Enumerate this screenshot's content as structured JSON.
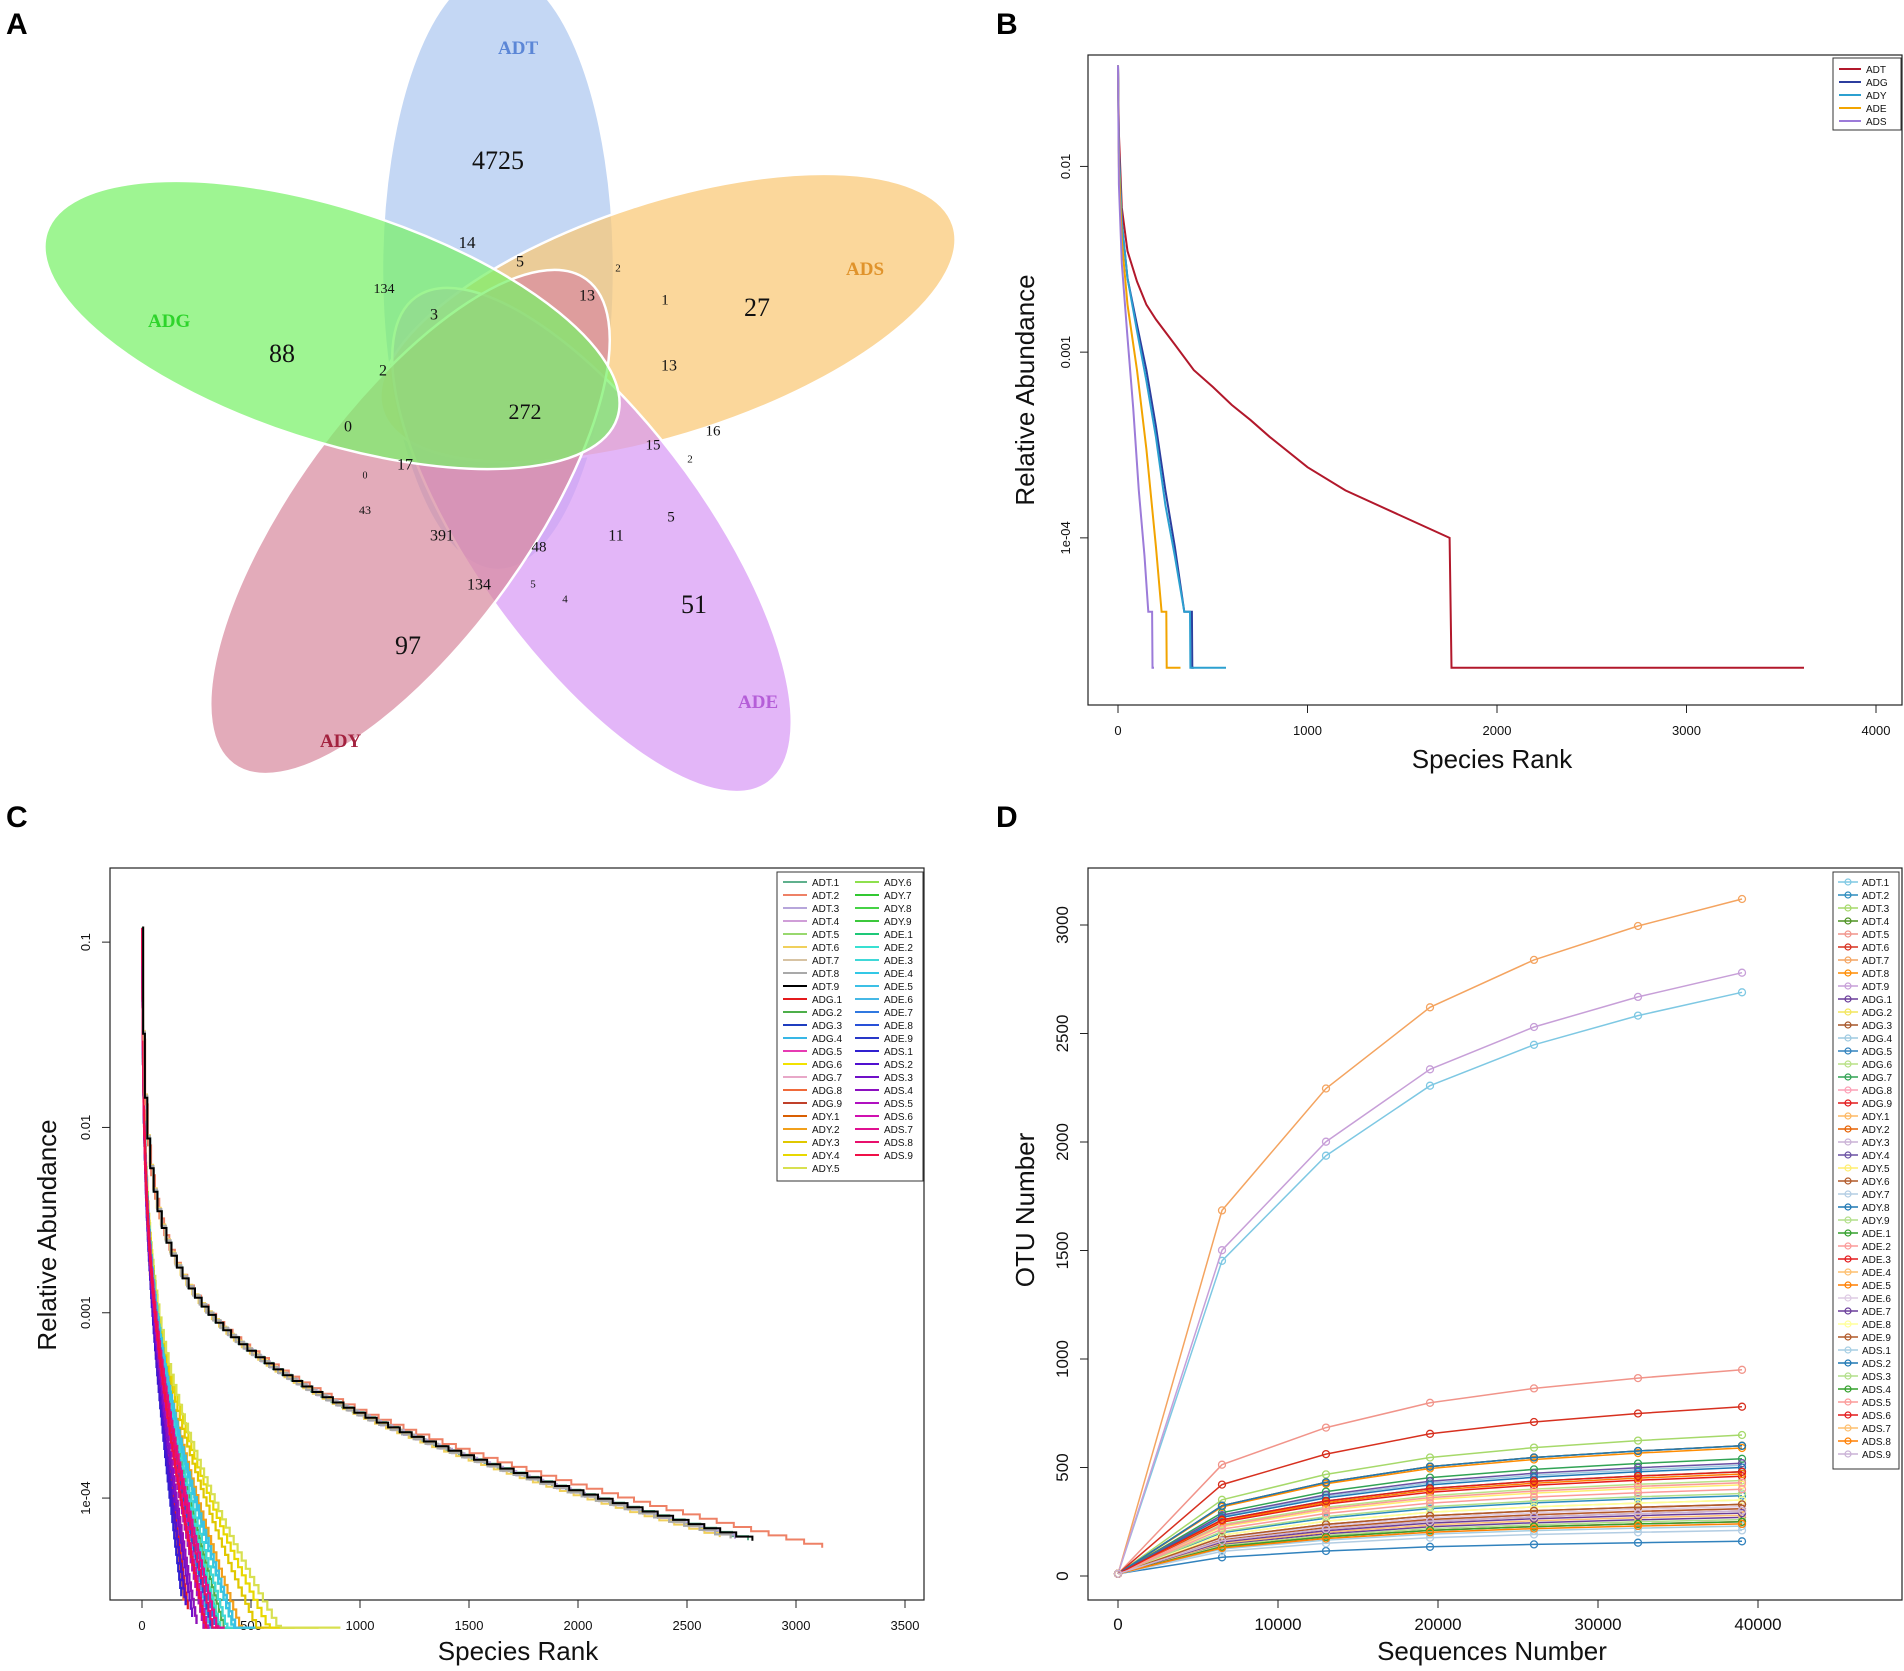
{
  "panels": {
    "A": "A",
    "B": "B",
    "C": "C",
    "D": "D"
  },
  "venn": {
    "sets": [
      {
        "name": "ADT",
        "color": "#6f9be8",
        "fill": "#adc7f0"
      },
      {
        "name": "ADS",
        "color": "#f0a53c",
        "fill": "#f9c874"
      },
      {
        "name": "ADE",
        "color": "#c57fe6",
        "fill": "#d89af5"
      },
      {
        "name": "ADY",
        "color": "#b2284c",
        "fill": "#d88aa0"
      },
      {
        "name": "ADG",
        "color": "#3fe03a",
        "fill": "#78f168"
      }
    ],
    "counts": [
      "4725",
      "27",
      "51",
      "97",
      "88",
      "14",
      "134",
      "3",
      "2",
      "0",
      "5",
      "2",
      "1",
      "13",
      "13",
      "16",
      "15",
      "2",
      "5",
      "11",
      "48",
      "391",
      "43",
      "17",
      "0",
      "134",
      "5",
      "4",
      "272"
    ]
  },
  "chart_data": [
    {
      "panel": "B",
      "type": "line",
      "title": "",
      "xlabel": "Species Rank",
      "ylabel": "Relative Abundance",
      "xlim": [
        0,
        4000
      ],
      "ylim_log10": [
        -4.9,
        -1.4
      ],
      "x_ticks": [
        "0",
        "1000",
        "2000",
        "3000",
        "4000"
      ],
      "y_ticks": [
        {
          "label": "0.01",
          "value": 0.01
        },
        {
          "label": "0.001",
          "value": 0.001
        },
        {
          "label": "1e-04",
          "value": 0.0001
        }
      ],
      "legend": [
        {
          "label": "ADT",
          "color": "#b2182b"
        },
        {
          "label": "ADG",
          "color": "#2c3e9e"
        },
        {
          "label": "ADY",
          "color": "#2ca0d0"
        },
        {
          "label": "ADE",
          "color": "#f2a400"
        },
        {
          "label": "ADS",
          "color": "#9c7bd9"
        }
      ],
      "series": [
        {
          "name": "ADT",
          "color": "#b2182b",
          "points": [
            [
              0,
              0.035
            ],
            [
              5,
              0.015
            ],
            [
              20,
              0.006
            ],
            [
              50,
              0.0035
            ],
            [
              100,
              0.0024
            ],
            [
              150,
              0.0018
            ],
            [
              200,
              0.0015
            ],
            [
              300,
              0.0011
            ],
            [
              400,
              0.0008
            ],
            [
              500,
              0.00065
            ],
            [
              600,
              0.00052
            ],
            [
              700,
              0.00043
            ],
            [
              800,
              0.00035
            ],
            [
              1000,
              0.00024
            ],
            [
              1200,
              0.00018
            ],
            [
              1750,
              0.0001
            ],
            [
              1760,
              2e-05
            ],
            [
              3620,
              2e-05
            ]
          ]
        },
        {
          "name": "ADG",
          "color": "#2c3e9e",
          "points": [
            [
              0,
              0.035
            ],
            [
              5,
              0.012
            ],
            [
              20,
              0.005
            ],
            [
              50,
              0.0025
            ],
            [
              100,
              0.0014
            ],
            [
              150,
              0.0008
            ],
            [
              200,
              0.0004
            ],
            [
              250,
              0.00018
            ],
            [
              300,
              9e-05
            ],
            [
              350,
              4e-05
            ],
            [
              390,
              4e-05
            ],
            [
              392,
              2e-05
            ],
            [
              400,
              2e-05
            ]
          ]
        },
        {
          "name": "ADY",
          "color": "#2ca0d0",
          "points": [
            [
              0,
              0.035
            ],
            [
              5,
              0.012
            ],
            [
              20,
              0.005
            ],
            [
              50,
              0.0025
            ],
            [
              100,
              0.0013
            ],
            [
              150,
              0.0007
            ],
            [
              200,
              0.00035
            ],
            [
              250,
              0.00015
            ],
            [
              300,
              8e-05
            ],
            [
              350,
              4e-05
            ],
            [
              380,
              4e-05
            ],
            [
              382,
              2e-05
            ],
            [
              570,
              2e-05
            ]
          ]
        },
        {
          "name": "ADE",
          "color": "#f2a400",
          "points": [
            [
              0,
              0.035
            ],
            [
              5,
              0.01
            ],
            [
              20,
              0.004
            ],
            [
              50,
              0.0018
            ],
            [
              100,
              0.0008
            ],
            [
              150,
              0.0003
            ],
            [
              200,
              9e-05
            ],
            [
              230,
              4e-05
            ],
            [
              255,
              4e-05
            ],
            [
              257,
              2e-05
            ],
            [
              330,
              2e-05
            ]
          ]
        },
        {
          "name": "ADS",
          "color": "#9c7bd9",
          "points": [
            [
              0,
              0.035
            ],
            [
              5,
              0.008
            ],
            [
              20,
              0.003
            ],
            [
              50,
              0.0012
            ],
            [
              80,
              0.0005
            ],
            [
              110,
              0.00018
            ],
            [
              140,
              8e-05
            ],
            [
              160,
              4e-05
            ],
            [
              180,
              4e-05
            ],
            [
              182,
              2e-05
            ],
            [
              190,
              2e-05
            ]
          ]
        }
      ]
    },
    {
      "panel": "C",
      "type": "line",
      "title": "",
      "xlabel": "Species Rank",
      "ylabel": "Relative Abundance",
      "xlim": [
        0,
        3500
      ],
      "ylim_log10": [
        -4.55,
        -0.6
      ],
      "x_ticks": [
        "0",
        "500",
        "1000",
        "1500",
        "2000",
        "2500",
        "3000",
        "3500"
      ],
      "y_ticks": [
        {
          "label": "0.1",
          "value": 0.1
        },
        {
          "label": "0.01",
          "value": 0.01
        },
        {
          "label": "0.001",
          "value": 0.001
        },
        {
          "label": "1e-04",
          "value": 0.0001
        }
      ],
      "legend_labels": [
        "ADT.1",
        "ADT.2",
        "ADT.3",
        "ADT.4",
        "ADT.5",
        "ADT.6",
        "ADT.7",
        "ADT.8",
        "ADT.9",
        "ADG.1",
        "ADG.2",
        "ADG.3",
        "ADG.4",
        "ADG.5",
        "ADG.6",
        "ADG.7",
        "ADG.8",
        "ADG.9",
        "ADY.1",
        "ADY.2",
        "ADY.3",
        "ADY.4",
        "ADY.5",
        "ADY.6",
        "ADY.7",
        "ADY.8",
        "ADY.9",
        "ADE.1",
        "ADE.2",
        "ADE.3",
        "ADE.4",
        "ADE.5",
        "ADE.6",
        "ADE.7",
        "ADE.8",
        "ADE.9",
        "ADS.1",
        "ADS.2",
        "ADS.3",
        "ADS.4",
        "ADS.5",
        "ADS.6",
        "ADS.7",
        "ADS.8",
        "ADS.9"
      ],
      "colors": [
        "#5fb08d",
        "#ee8166",
        "#b7a6db",
        "#d09ed8",
        "#98d86e",
        "#f0d05c",
        "#d7c3a3",
        "#a9a9a9",
        "#000000",
        "#e41a1c",
        "#4daf4a",
        "#1f3dbf",
        "#38b7e6",
        "#e73bb3",
        "#f2e200",
        "#e8a8c8",
        "#f06a3a",
        "#c0402a",
        "#d95f02",
        "#f2a01b",
        "#e0c800",
        "#e8d800",
        "#d8e050",
        "#8ee04d",
        "#32c832",
        "#46d246",
        "#3cc83c",
        "#1ec878",
        "#38e0d2",
        "#40d8d8",
        "#32c8e6",
        "#3cc0e6",
        "#46b8e6",
        "#3078e0",
        "#2850d8",
        "#2838c8",
        "#3020d0",
        "#5010d0",
        "#7010c8",
        "#8c10c0",
        "#b010c0",
        "#d010b0",
        "#e01090",
        "#e8106c",
        "#f01048"
      ],
      "series_maxrank": [
        2780,
        3120,
        2720,
        2700,
        2700,
        2650,
        2700,
        2700,
        2800,
        210,
        430,
        200,
        310,
        230,
        400,
        300,
        190,
        250,
        290,
        560,
        700,
        810,
        910,
        400,
        450,
        500,
        520,
        390,
        400,
        450,
        500,
        520,
        330,
        370,
        340,
        310,
        180,
        200,
        230,
        250,
        290,
        310,
        380,
        350,
        300
      ],
      "long_tail_series": [
        "ADT.1",
        "ADT.2",
        "ADT.3",
        "ADT.4",
        "ADT.5",
        "ADT.6",
        "ADT.7",
        "ADT.8",
        "ADT.9"
      ]
    },
    {
      "panel": "D",
      "type": "line",
      "title": "",
      "xlabel": "Sequences Number",
      "ylabel": "OTU Number",
      "xlim": [
        0,
        48000
      ],
      "ylim": [
        0,
        3200
      ],
      "x_ticks": [
        0,
        10000,
        20000,
        30000,
        40000
      ],
      "y_ticks": [
        0,
        500,
        1000,
        1500,
        2000,
        2500,
        3000
      ],
      "x": [
        0,
        6500,
        13000,
        19500,
        26000,
        32500,
        39000
      ],
      "legend_labels": [
        "ADT.1",
        "ADT.2",
        "ADT.3",
        "ADT.4",
        "ADT.5",
        "ADT.6",
        "ADT.7",
        "ADT.8",
        "ADT.9",
        "ADG.1",
        "ADG.2",
        "ADG.3",
        "ADG.4",
        "ADG.5",
        "ADG.6",
        "ADG.7",
        "ADG.8",
        "ADG.9",
        "ADY.1",
        "ADY.2",
        "ADY.3",
        "ADY.4",
        "ADY.5",
        "ADY.6",
        "ADY.7",
        "ADY.8",
        "ADY.9",
        "ADE.1",
        "ADE.2",
        "ADE.3",
        "ADE.4",
        "ADE.5",
        "ADE.6",
        "ADE.7",
        "ADE.8",
        "ADE.9",
        "ADS.1",
        "ADS.2",
        "ADS.3",
        "ADS.4",
        "ADS.5",
        "ADS.6",
        "ADS.7",
        "ADS.8",
        "ADS.9"
      ],
      "colors": [
        "#7ec8e3",
        "#2b8cbe",
        "#a6d96a",
        "#4d9221",
        "#f1948a",
        "#d7301f",
        "#f4a460",
        "#ff8c00",
        "#c79fd8",
        "#6a3d9a",
        "#f2e55c",
        "#a65628",
        "#9ecae1",
        "#3182bd",
        "#b8e186",
        "#31a354",
        "#fc9fb5",
        "#e31a1c",
        "#fdb863",
        "#e66101",
        "#cab2d6",
        "#6a51a3",
        "#ffed6f",
        "#b15928",
        "#b3cde3",
        "#1f78b4",
        "#b2df8a",
        "#33a02c",
        "#fb9a99",
        "#e31a1c",
        "#fdbf6f",
        "#ff7f00",
        "#decbe4",
        "#6a3d9a",
        "#ffff99",
        "#b15928",
        "#a6cee3",
        "#1f78b4",
        "#b2df8a",
        "#33a02c",
        "#fb9a99",
        "#e31a1c",
        "#fdbf6f",
        "#ff7f00",
        "#cab2d6"
      ],
      "series_final": [
        2690,
        370,
        650,
        600,
        950,
        780,
        3120,
        590,
        2780,
        270,
        350,
        330,
        510,
        160,
        440,
        540,
        310,
        460,
        300,
        600,
        300,
        520,
        420,
        310,
        210,
        500,
        260,
        480,
        430,
        250,
        280,
        470,
        320,
        290,
        350,
        330,
        230,
        600,
        380,
        250,
        400,
        480,
        300,
        240,
        300
      ]
    }
  ]
}
